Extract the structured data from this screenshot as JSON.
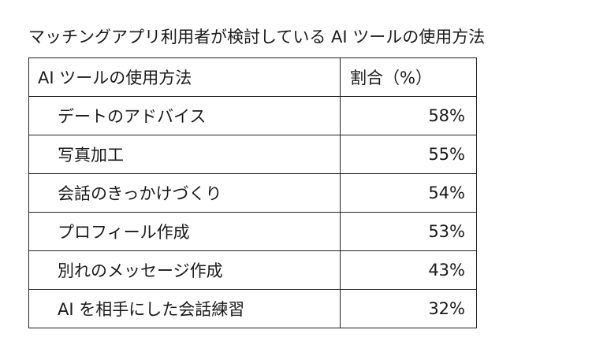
{
  "chart_data": {
    "type": "table",
    "title": "マッチングアプリ利用者が検討している AI ツールの使用方法",
    "columns": [
      "AI ツールの使用方法",
      "割合（%）"
    ],
    "rows": [
      {
        "label": "デートのアドバイス",
        "value": 58,
        "display": "58%"
      },
      {
        "label": "写真加工",
        "value": 55,
        "display": "55%"
      },
      {
        "label": "会話のきっかけづくり",
        "value": 54,
        "display": "54%"
      },
      {
        "label": "プロフィール作成",
        "value": 53,
        "display": "53%"
      },
      {
        "label": "別れのメッセージ作成",
        "value": 43,
        "display": "43%"
      },
      {
        "label": "AI を相手にした会話練習",
        "value": 32,
        "display": "32%"
      }
    ]
  }
}
